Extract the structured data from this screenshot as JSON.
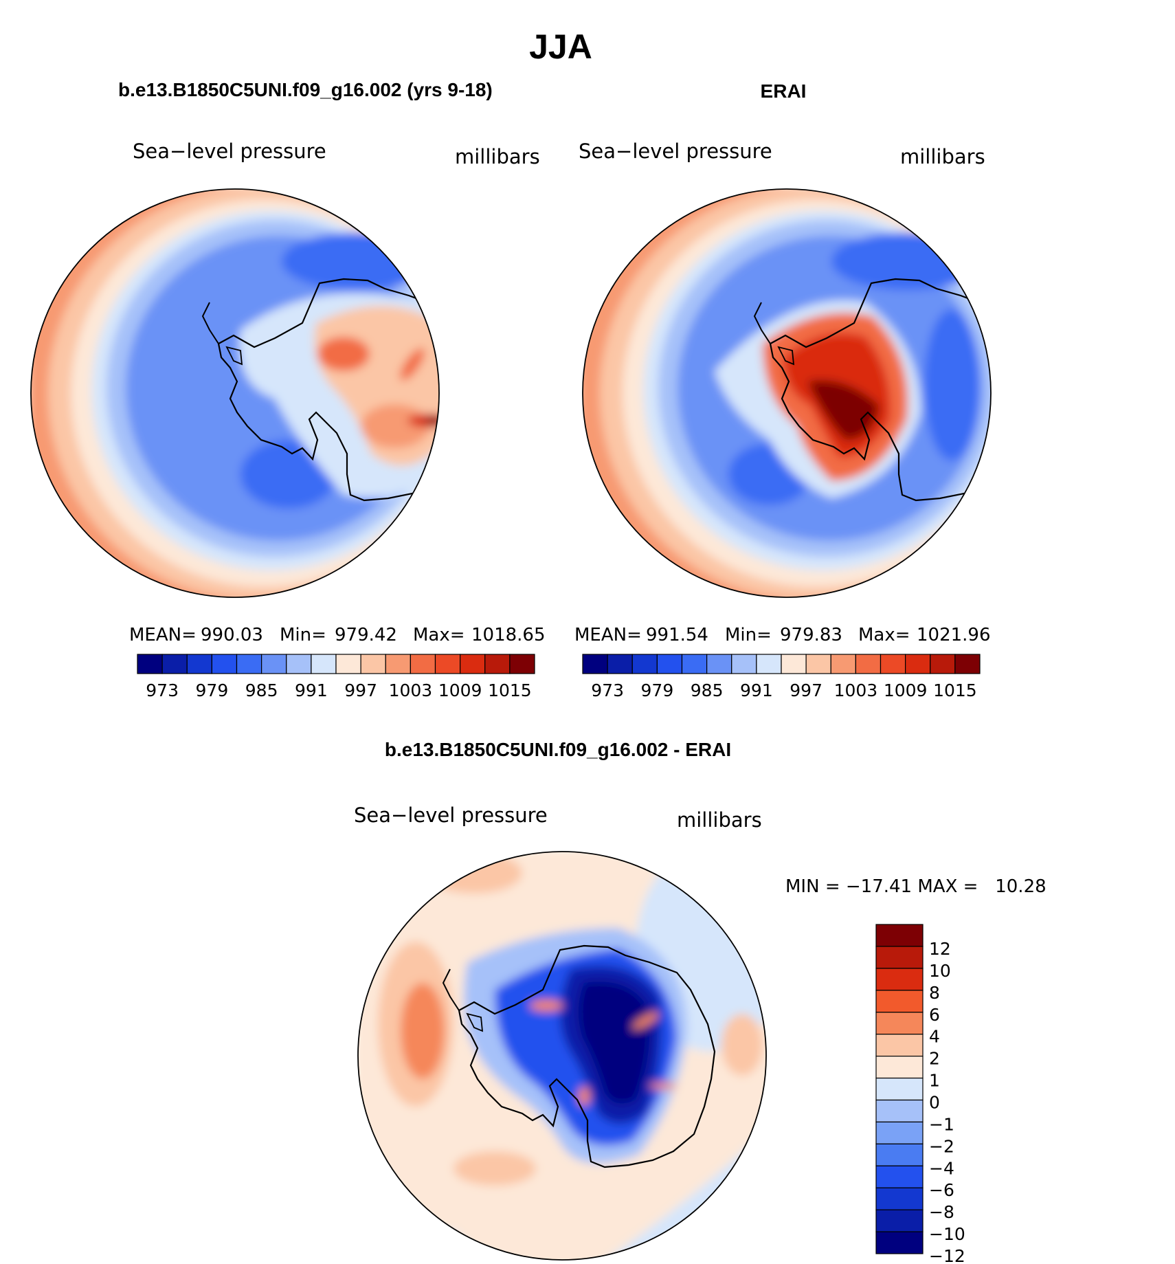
{
  "page": {
    "title": "JJA"
  },
  "panels": [
    {
      "id": "model",
      "header": "b.e13.B1850C5UNI.f09_g16.002 (yrs 9-18)",
      "variable": "Sea−level pressure",
      "units": "millibars",
      "stats": {
        "mean_label": "MEAN=",
        "mean": "990.03",
        "min_label": "Min=",
        "min": "979.42",
        "max_label": "Max=",
        "max": "1018.65"
      }
    },
    {
      "id": "obs",
      "header": "ERAI",
      "variable": "Sea−level pressure",
      "units": "millibars",
      "stats": {
        "mean_label": "MEAN=",
        "mean": "991.54",
        "min_label": "Min=",
        "min": "979.83",
        "max_label": "Max=",
        "max": "1021.96"
      }
    },
    {
      "id": "diff",
      "header": "b.e13.B1850C5UNI.f09_g16.002 - ERAI",
      "variable": "Sea−level pressure",
      "units": "millibars",
      "stats_text": "MIN = −17.41 MAX =   10.28"
    }
  ],
  "chart_data": [
    {
      "type": "heatmap",
      "projection": "south-polar-stereographic",
      "title": "b.e13.B1850C5UNI.f09_g16.002 (yrs 9-18)",
      "variable": "Sea-level pressure",
      "units": "millibars",
      "mean": 990.03,
      "min": 979.42,
      "max": 1018.65,
      "colorbar": {
        "orientation": "horizontal",
        "tick_labels": [
          "973",
          "979",
          "985",
          "991",
          "997",
          "1003",
          "1009",
          "1015"
        ],
        "colors": [
          "#00007f",
          "#0a1ea8",
          "#1338d0",
          "#2351ee",
          "#3a6cf4",
          "#6a92f6",
          "#a6c1f9",
          "#d6e6fb",
          "#fde8d8",
          "#fbc6a6",
          "#f79a72",
          "#f26c44",
          "#ec4a26",
          "#da2c10",
          "#b81a0a",
          "#7d0004"
        ]
      }
    },
    {
      "type": "heatmap",
      "projection": "south-polar-stereographic",
      "title": "ERAI",
      "variable": "Sea-level pressure",
      "units": "millibars",
      "mean": 991.54,
      "min": 979.83,
      "max": 1021.96,
      "colorbar": {
        "orientation": "horizontal",
        "tick_labels": [
          "973",
          "979",
          "985",
          "991",
          "997",
          "1003",
          "1009",
          "1015"
        ],
        "colors": [
          "#00007f",
          "#0a1ea8",
          "#1338d0",
          "#2351ee",
          "#3a6cf4",
          "#6a92f6",
          "#a6c1f9",
          "#d6e6fb",
          "#fde8d8",
          "#fbc6a6",
          "#f79a72",
          "#f26c44",
          "#ec4a26",
          "#da2c10",
          "#b81a0a",
          "#7d0004"
        ]
      }
    },
    {
      "type": "heatmap",
      "projection": "south-polar-stereographic",
      "title": "b.e13.B1850C5UNI.f09_g16.002 - ERAI",
      "variable": "Sea-level pressure",
      "units": "millibars",
      "min": -17.41,
      "max": 10.28,
      "colorbar": {
        "orientation": "vertical",
        "tick_labels": [
          "12",
          "10",
          "8",
          "6",
          "4",
          "2",
          "1",
          "0",
          "−1",
          "−2",
          "−4",
          "−6",
          "−8",
          "−10",
          "−12"
        ],
        "colors": [
          "#7d0004",
          "#b81a0a",
          "#da2c10",
          "#f25a2c",
          "#f5875a",
          "#fbc6a6",
          "#fde8d8",
          "#d6e6fb",
          "#a6c1f9",
          "#7aa2f6",
          "#4a7cf2",
          "#2351ee",
          "#1338d0",
          "#0a1ea8",
          "#00007f"
        ]
      }
    }
  ]
}
